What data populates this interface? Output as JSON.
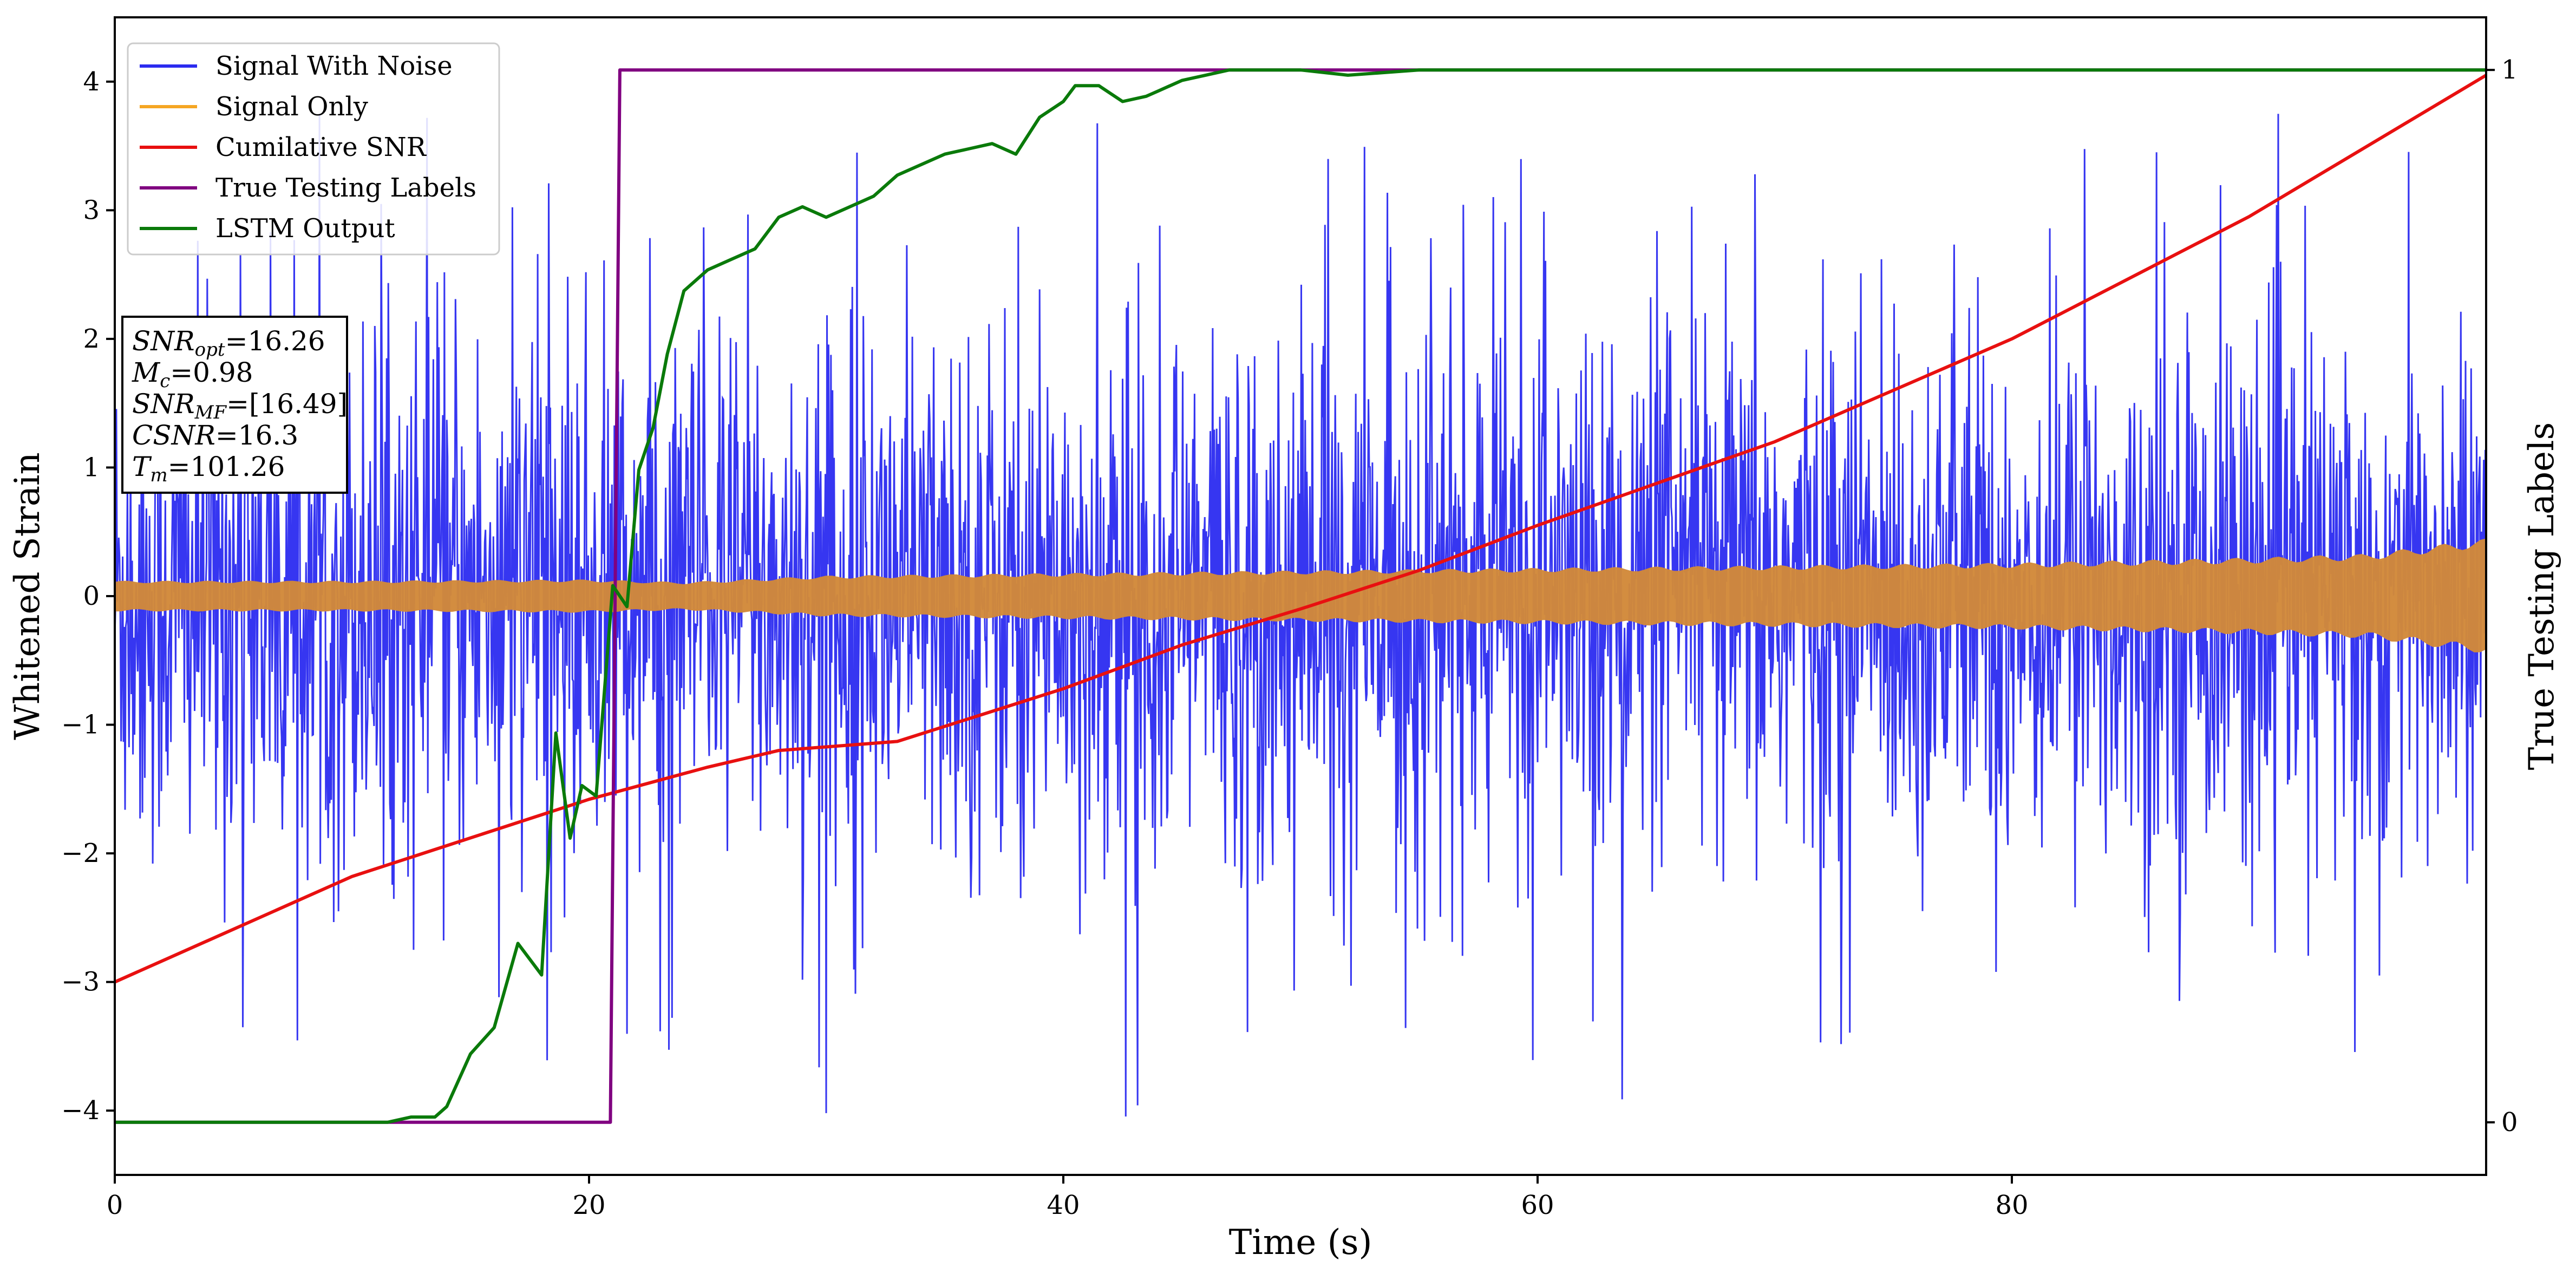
{
  "chart_data": {
    "type": "line",
    "xlabel": "Time (s)",
    "ylabel": "Whitened Strain",
    "ylabel_right": "True Testing Labels",
    "xlim": [
      0,
      100
    ],
    "ylim": [
      -4.5,
      4.5
    ],
    "ylim_right": [
      -0.05,
      1.05
    ],
    "x_ticks": [
      0,
      20,
      40,
      60,
      80
    ],
    "y_ticks": [
      -4,
      -3,
      -2,
      -1,
      0,
      1,
      2,
      3,
      4
    ],
    "y_ticks_right": [
      0,
      1
    ],
    "grid": false,
    "legend_position": "top-left",
    "legend": [
      {
        "name": "Signal With Noise",
        "color": "#2b2bf0"
      },
      {
        "name": "Signal Only",
        "color": "#f5a623"
      },
      {
        "name": "Cumilative SNR",
        "color": "#e81010"
      },
      {
        "name": "True Testing Labels",
        "color": "#800080"
      },
      {
        "name": "LSTM Output",
        "color": "#0a7a0a"
      }
    ],
    "series": [
      {
        "name": "Signal With Noise",
        "color": "#2b2bf0",
        "axis": "left",
        "kind": "noise band",
        "mean": 0.0,
        "typical_range": [
          -2.3,
          2.3
        ],
        "extreme_range": [
          -4.05,
          3.75
        ]
      },
      {
        "name": "Signal Only",
        "color": "#f5a623",
        "axis": "left",
        "kind": "amplitude envelope",
        "x": [
          0,
          10,
          20,
          24,
          30,
          40,
          50,
          60,
          70,
          80,
          90,
          95,
          100
        ],
        "amplitude": [
          0.12,
          0.12,
          0.13,
          0.11,
          0.16,
          0.18,
          0.2,
          0.22,
          0.24,
          0.26,
          0.3,
          0.33,
          0.45
        ]
      },
      {
        "name": "Cumilative SNR",
        "color": "#e81010",
        "axis": "left",
        "x": [
          0,
          10,
          20,
          25,
          28,
          33,
          40,
          45,
          50,
          55,
          60,
          70,
          80,
          90,
          100
        ],
        "values": [
          -3.0,
          -2.18,
          -1.58,
          -1.33,
          -1.2,
          -1.13,
          -0.72,
          -0.38,
          -0.1,
          0.2,
          0.55,
          1.2,
          2.0,
          2.95,
          4.05
        ]
      },
      {
        "name": "True Testing Labels",
        "color": "#800080",
        "axis": "right",
        "x": [
          0,
          20.9,
          21.3,
          100
        ],
        "values": [
          0,
          0,
          1,
          1
        ]
      },
      {
        "name": "LSTM Output",
        "color": "#0a7a0a",
        "axis": "right",
        "x": [
          0,
          11.5,
          12.5,
          13.5,
          14,
          15,
          16,
          17,
          18,
          18.6,
          19.2,
          19.7,
          20.3,
          21,
          21.6,
          22.1,
          22.7,
          23.3,
          24,
          25,
          26,
          27,
          28,
          29,
          30,
          32,
          33,
          34,
          35,
          36,
          37,
          38,
          39,
          40,
          40.5,
          41.5,
          42.5,
          43.5,
          44,
          45,
          46,
          47,
          48,
          50,
          52,
          55,
          57,
          60,
          100
        ],
        "values": [
          0,
          0,
          0.005,
          0.005,
          0.015,
          0.065,
          0.09,
          0.17,
          0.14,
          0.37,
          0.27,
          0.32,
          0.31,
          0.51,
          0.49,
          0.62,
          0.66,
          0.73,
          0.79,
          0.81,
          0.82,
          0.83,
          0.86,
          0.87,
          0.86,
          0.88,
          0.9,
          0.91,
          0.92,
          0.925,
          0.93,
          0.92,
          0.955,
          0.97,
          0.985,
          0.985,
          0.97,
          0.975,
          0.98,
          0.99,
          0.995,
          1.0,
          1.0,
          1.0,
          0.995,
          1.0,
          1.0,
          1.0,
          1.0
        ]
      }
    ]
  },
  "annotation": {
    "lines": [
      {
        "main": "SNR",
        "sub": "opt",
        "value": "=16.26"
      },
      {
        "main": "M",
        "sub": "c",
        "value": "=0.98"
      },
      {
        "main": "SNR",
        "sub": "MF",
        "value": "=[16.49]"
      },
      {
        "main": "CSNR",
        "sub": "",
        "value": "=16.3"
      },
      {
        "main": "T",
        "sub": "m",
        "value": "=101.26"
      }
    ]
  }
}
